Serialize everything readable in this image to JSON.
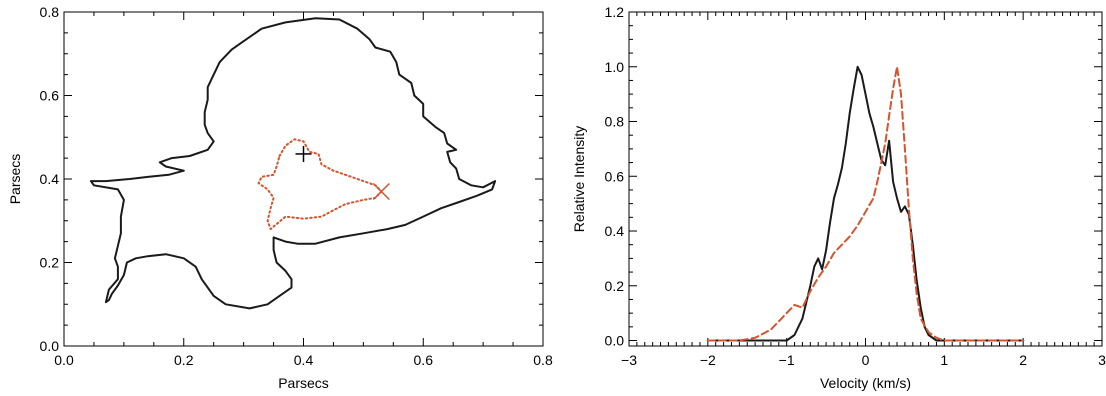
{
  "chart_data": [
    {
      "type": "line",
      "title": "",
      "xlabel": "Parsecs",
      "ylabel": "Parsecs",
      "xlim": [
        0.0,
        0.8
      ],
      "ylim": [
        0.0,
        0.8
      ],
      "xticks": [
        0.0,
        0.2,
        0.4,
        0.6,
        0.8
      ],
      "xtick_labels": [
        "0.0",
        "0.2",
        "0.4",
        "0.6",
        "0.8"
      ],
      "yticks": [
        0.0,
        0.2,
        0.4,
        0.6,
        0.8
      ],
      "ytick_labels": [
        "0.0",
        "0.2",
        "0.4",
        "0.6",
        "0.8"
      ],
      "grid": false,
      "series": [
        {
          "style": "solid",
          "color": "#1a1a1a",
          "points": [
            [
              0.3,
              0.73
            ],
            [
              0.33,
              0.76
            ],
            [
              0.37,
              0.775
            ],
            [
              0.42,
              0.785
            ],
            [
              0.46,
              0.782
            ],
            [
              0.49,
              0.76
            ],
            [
              0.51,
              0.735
            ],
            [
              0.52,
              0.715
            ],
            [
              0.545,
              0.705
            ],
            [
              0.555,
              0.68
            ],
            [
              0.56,
              0.65
            ],
            [
              0.58,
              0.63
            ],
            [
              0.585,
              0.6
            ],
            [
              0.6,
              0.58
            ],
            [
              0.6,
              0.55
            ],
            [
              0.62,
              0.525
            ],
            [
              0.635,
              0.51
            ],
            [
              0.64,
              0.485
            ],
            [
              0.655,
              0.47
            ],
            [
              0.64,
              0.465
            ],
            [
              0.645,
              0.44
            ],
            [
              0.655,
              0.425
            ],
            [
              0.66,
              0.4
            ],
            [
              0.68,
              0.385
            ],
            [
              0.7,
              0.38
            ],
            [
              0.72,
              0.395
            ],
            [
              0.715,
              0.375
            ],
            [
              0.69,
              0.36
            ],
            [
              0.66,
              0.345
            ],
            [
              0.63,
              0.33
            ],
            [
              0.6,
              0.31
            ],
            [
              0.57,
              0.29
            ],
            [
              0.54,
              0.28
            ],
            [
              0.5,
              0.27
            ],
            [
              0.46,
              0.26
            ],
            [
              0.42,
              0.245
            ],
            [
              0.39,
              0.245
            ],
            [
              0.37,
              0.25
            ],
            [
              0.35,
              0.26
            ],
            [
              0.35,
              0.23
            ],
            [
              0.355,
              0.2
            ],
            [
              0.37,
              0.18
            ],
            [
              0.38,
              0.16
            ],
            [
              0.38,
              0.14
            ],
            [
              0.36,
              0.12
            ],
            [
              0.34,
              0.1
            ],
            [
              0.31,
              0.09
            ],
            [
              0.27,
              0.1
            ],
            [
              0.25,
              0.12
            ],
            [
              0.23,
              0.16
            ],
            [
              0.22,
              0.19
            ],
            [
              0.2,
              0.21
            ],
            [
              0.17,
              0.22
            ],
            [
              0.14,
              0.215
            ],
            [
              0.12,
              0.21
            ],
            [
              0.105,
              0.2
            ],
            [
              0.1,
              0.17
            ],
            [
              0.09,
              0.145
            ],
            [
              0.08,
              0.125
            ],
            [
              0.075,
              0.11
            ],
            [
              0.07,
              0.105
            ],
            [
              0.075,
              0.135
            ],
            [
              0.09,
              0.16
            ],
            [
              0.09,
              0.19
            ],
            [
              0.085,
              0.21
            ],
            [
              0.09,
              0.24
            ],
            [
              0.095,
              0.27
            ],
            [
              0.095,
              0.31
            ],
            [
              0.1,
              0.35
            ],
            [
              0.09,
              0.375
            ],
            [
              0.05,
              0.385
            ],
            [
              0.045,
              0.395
            ],
            [
              0.07,
              0.395
            ],
            [
              0.11,
              0.4
            ],
            [
              0.14,
              0.405
            ],
            [
              0.175,
              0.41
            ],
            [
              0.2,
              0.42
            ],
            [
              0.17,
              0.43
            ],
            [
              0.16,
              0.44
            ],
            [
              0.18,
              0.45
            ],
            [
              0.21,
              0.455
            ],
            [
              0.24,
              0.47
            ],
            [
              0.25,
              0.49
            ],
            [
              0.24,
              0.51
            ],
            [
              0.235,
              0.53
            ],
            [
              0.235,
              0.56
            ],
            [
              0.24,
              0.59
            ],
            [
              0.24,
              0.62
            ],
            [
              0.25,
              0.65
            ],
            [
              0.26,
              0.68
            ],
            [
              0.28,
              0.71
            ],
            [
              0.3,
              0.73
            ]
          ]
        },
        {
          "style": "dotted",
          "color": "#d4542e",
          "points": [
            [
              0.36,
              0.455
            ],
            [
              0.37,
              0.48
            ],
            [
              0.385,
              0.495
            ],
            [
              0.4,
              0.49
            ],
            [
              0.41,
              0.465
            ],
            [
              0.425,
              0.46
            ],
            [
              0.43,
              0.435
            ],
            [
              0.45,
              0.42
            ],
            [
              0.47,
              0.41
            ],
            [
              0.5,
              0.395
            ],
            [
              0.52,
              0.385
            ],
            [
              0.53,
              0.37
            ],
            [
              0.52,
              0.355
            ],
            [
              0.5,
              0.35
            ],
            [
              0.47,
              0.34
            ],
            [
              0.45,
              0.325
            ],
            [
              0.43,
              0.31
            ],
            [
              0.4,
              0.305
            ],
            [
              0.37,
              0.31
            ],
            [
              0.345,
              0.28
            ],
            [
              0.34,
              0.3
            ],
            [
              0.345,
              0.33
            ],
            [
              0.35,
              0.355
            ],
            [
              0.34,
              0.375
            ],
            [
              0.325,
              0.39
            ],
            [
              0.33,
              0.405
            ],
            [
              0.35,
              0.41
            ],
            [
              0.355,
              0.43
            ],
            [
              0.36,
              0.455
            ]
          ]
        }
      ],
      "markers": [
        {
          "symbol": "+",
          "x": 0.4,
          "y": 0.46,
          "color": "#000000"
        },
        {
          "symbol": "x",
          "x": 0.53,
          "y": 0.37,
          "color": "#d4542e"
        }
      ]
    },
    {
      "type": "line",
      "title": "",
      "xlabel": "Velocity (km/s)",
      "ylabel": "Relative Intensity",
      "xlim": [
        -3,
        3
      ],
      "ylim": [
        -0.02,
        1.2
      ],
      "xticks": [
        -3,
        -2,
        -1,
        0,
        1,
        2,
        3
      ],
      "xtick_labels": [
        "−3",
        "−2",
        "−1",
        "0",
        "1",
        "2",
        "3"
      ],
      "yticks": [
        0.0,
        0.2,
        0.4,
        0.6,
        0.8,
        1.0,
        1.2
      ],
      "ytick_labels": [
        "0.0",
        "0.2",
        "0.4",
        "0.6",
        "0.8",
        "1.0",
        "1.2"
      ],
      "grid": false,
      "series": [
        {
          "style": "solid",
          "color": "#1a1a1a",
          "x": [
            -2.0,
            -1.2,
            -1.0,
            -0.9,
            -0.8,
            -0.7,
            -0.65,
            -0.6,
            -0.55,
            -0.5,
            -0.45,
            -0.4,
            -0.35,
            -0.3,
            -0.25,
            -0.2,
            -0.15,
            -0.1,
            -0.05,
            0.0,
            0.05,
            0.1,
            0.15,
            0.2,
            0.25,
            0.3,
            0.35,
            0.4,
            0.45,
            0.5,
            0.55,
            0.6,
            0.65,
            0.7,
            0.75,
            0.8,
            0.9,
            1.0,
            1.5,
            2.0
          ],
          "y": [
            0.0,
            0.0,
            0.0,
            0.02,
            0.08,
            0.2,
            0.27,
            0.3,
            0.26,
            0.33,
            0.43,
            0.52,
            0.57,
            0.63,
            0.72,
            0.83,
            0.92,
            1.0,
            0.97,
            0.9,
            0.83,
            0.78,
            0.72,
            0.66,
            0.64,
            0.73,
            0.58,
            0.52,
            0.47,
            0.49,
            0.46,
            0.35,
            0.22,
            0.12,
            0.05,
            0.02,
            0.0,
            0.0,
            0.0,
            0.0
          ]
        },
        {
          "style": "dashed",
          "color": "#d4542e",
          "x": [
            -2.0,
            -1.6,
            -1.4,
            -1.2,
            -1.0,
            -0.9,
            -0.8,
            -0.7,
            -0.6,
            -0.5,
            -0.4,
            -0.3,
            -0.2,
            -0.1,
            0.0,
            0.1,
            0.15,
            0.2,
            0.25,
            0.3,
            0.35,
            0.4,
            0.45,
            0.5,
            0.55,
            0.6,
            0.65,
            0.7,
            0.8,
            0.9,
            1.0,
            1.5,
            2.0
          ],
          "y": [
            0.0,
            0.0,
            0.01,
            0.04,
            0.1,
            0.13,
            0.12,
            0.18,
            0.23,
            0.27,
            0.32,
            0.35,
            0.38,
            0.42,
            0.47,
            0.52,
            0.58,
            0.65,
            0.72,
            0.82,
            0.92,
            1.0,
            0.9,
            0.7,
            0.48,
            0.3,
            0.17,
            0.08,
            0.03,
            0.01,
            0.0,
            0.0,
            0.0
          ]
        }
      ]
    }
  ]
}
